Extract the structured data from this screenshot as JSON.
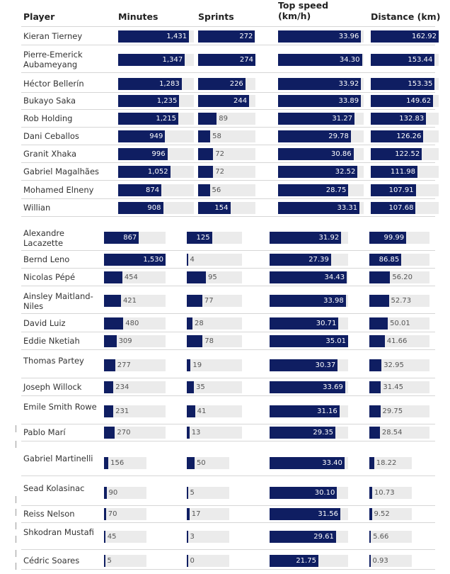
{
  "chart_data": {
    "type": "bar",
    "columns": [
      {
        "key": "minutes",
        "label": "Minutes",
        "max": 1530
      },
      {
        "key": "sprints",
        "label": "Sprints",
        "max": 274
      },
      {
        "key": "top_speed",
        "label": "Top speed (km/h)",
        "max": 35.01
      },
      {
        "key": "distance",
        "label": "Distance (km)",
        "max": 162.92
      }
    ],
    "player_header": "Player",
    "groups": [
      {
        "rows": [
          {
            "name": "Kieran Tierney",
            "minutes": "1,431",
            "sprints": 272,
            "top_speed": "33.96",
            "distance": "162.92"
          },
          {
            "name": "Pierre-Emerick Aubameyang",
            "minutes": "1,347",
            "sprints": 274,
            "top_speed": "34.30",
            "distance": "153.44"
          },
          {
            "name": "Héctor Bellerín",
            "minutes": "1,283",
            "sprints": 226,
            "top_speed": "33.92",
            "distance": "153.35"
          },
          {
            "name": "Bukayo Saka",
            "minutes": "1,235",
            "sprints": 244,
            "top_speed": "33.89",
            "distance": "149.62"
          },
          {
            "name": "Rob Holding",
            "minutes": "1,215",
            "sprints": 89,
            "top_speed": "31.27",
            "distance": "132.83"
          },
          {
            "name": "Dani Ceballos",
            "minutes": "949",
            "sprints": 58,
            "top_speed": "29.78",
            "distance": "126.26"
          },
          {
            "name": "Granit Xhaka",
            "minutes": "996",
            "sprints": 72,
            "top_speed": "30.86",
            "distance": "122.52"
          },
          {
            "name": "Gabriel Magalhães",
            "minutes": "1,052",
            "sprints": 72,
            "top_speed": "32.52",
            "distance": "111.98"
          },
          {
            "name": "Mohamed Elneny",
            "minutes": "874",
            "sprints": 56,
            "top_speed": "28.75",
            "distance": "107.91"
          },
          {
            "name": "Willian",
            "minutes": "908",
            "sprints": 154,
            "top_speed": "33.31",
            "distance": "107.68"
          }
        ]
      },
      {
        "rows": [
          {
            "name": "Alexandre Lacazette",
            "minutes": "867",
            "sprints": 125,
            "top_speed": "31.92",
            "distance": "99.99"
          },
          {
            "name": "Bernd Leno",
            "minutes": "1,530",
            "sprints": 4,
            "top_speed": "27.39",
            "distance": "86.85"
          },
          {
            "name": "Nicolas Pépé",
            "minutes": "454",
            "sprints": 95,
            "top_speed": "34.43",
            "distance": "56.20"
          },
          {
            "name": "Ainsley Maitland-Niles",
            "minutes": "421",
            "sprints": 77,
            "top_speed": "33.98",
            "distance": "52.73"
          },
          {
            "name": "David Luiz",
            "minutes": "480",
            "sprints": 28,
            "top_speed": "30.71",
            "distance": "50.01"
          },
          {
            "name": "Eddie Nketiah",
            "minutes": "309",
            "sprints": 78,
            "top_speed": "35.01",
            "distance": "41.66"
          },
          {
            "name": "Thomas Partey",
            "minutes": "277",
            "sprints": 19,
            "top_speed": "30.37",
            "distance": "32.95"
          },
          {
            "name": "Joseph Willock",
            "minutes": "234",
            "sprints": 35,
            "top_speed": "33.69",
            "distance": "31.45"
          },
          {
            "name": "Emile Smith Rowe",
            "minutes": "231",
            "sprints": 41,
            "top_speed": "31.16",
            "distance": "29.75"
          },
          {
            "name": "Pablo Marí",
            "minutes": "270",
            "sprints": 13,
            "top_speed": "29.35",
            "distance": "28.54"
          }
        ]
      },
      {
        "rows": [
          {
            "name": "Gabriel Martinelli",
            "minutes": "156",
            "sprints": 50,
            "top_speed": "33.40",
            "distance": "18.22"
          },
          {
            "name": "Sead Kolasinac",
            "minutes": "90",
            "sprints": 5,
            "top_speed": "30.10",
            "distance": "10.73"
          },
          {
            "name": "Reiss Nelson",
            "minutes": "70",
            "sprints": 17,
            "top_speed": "31.56",
            "distance": "9.52"
          },
          {
            "name": "Shkodran Mustafi",
            "minutes": "45",
            "sprints": 3,
            "top_speed": "29.61",
            "distance": "5.66"
          },
          {
            "name": "Cédric Soares",
            "minutes": "5",
            "sprints": 0,
            "top_speed": "21.75",
            "distance": "0.93"
          }
        ]
      }
    ],
    "colors": {
      "bar": "#0f1e62",
      "track": "#ebebeb"
    }
  }
}
